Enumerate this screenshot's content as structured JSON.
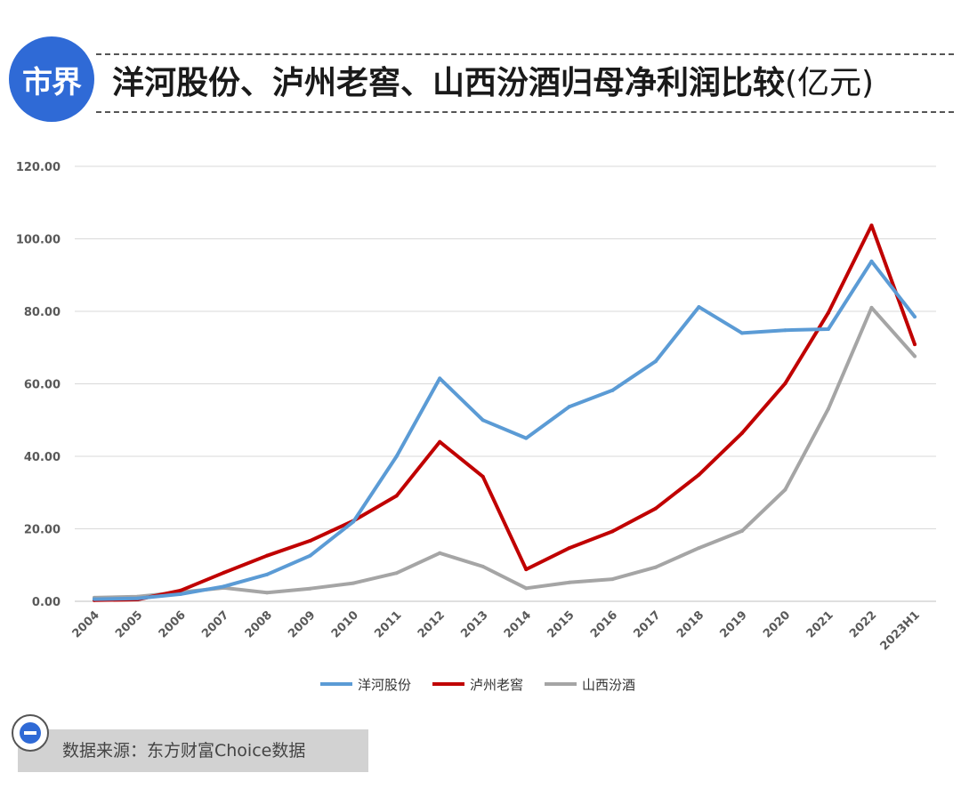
{
  "header": {
    "badge": "市界",
    "title_main": "洋河股份、泸州老窖、山西汾酒归母净利润比较",
    "title_unit": "(亿元)"
  },
  "source": {
    "text": "数据来源：东方财富Choice数据"
  },
  "colors": {
    "yanghe": "#5b9bd5",
    "luzhou": "#c00000",
    "fenjiu": "#a5a5a5",
    "brand": "#2f6ad6"
  },
  "chart_data": {
    "type": "line",
    "title": "洋河股份、泸州老窖、山西汾酒归母净利润比较(亿元)",
    "xlabel": "",
    "ylabel": "",
    "ylim": [
      0,
      120
    ],
    "yticks": [
      "0.00",
      "20.00",
      "40.00",
      "60.00",
      "80.00",
      "100.00",
      "120.00"
    ],
    "categories": [
      "2004",
      "2005",
      "2006",
      "2007",
      "2008",
      "2009",
      "2010",
      "2011",
      "2012",
      "2013",
      "2014",
      "2015",
      "2016",
      "2017",
      "2018",
      "2019",
      "2020",
      "2021",
      "2022",
      "2023H1"
    ],
    "series": [
      {
        "name": "洋河股份",
        "color": "#5b9bd5",
        "values": [
          0.6,
          0.8,
          2.0,
          4.1,
          7.4,
          12.6,
          22.0,
          40.0,
          61.5,
          50.0,
          45.0,
          53.7,
          58.2,
          66.2,
          81.2,
          74.0,
          74.8,
          75.1,
          93.8,
          78.5
        ]
      },
      {
        "name": "泸州老窖",
        "color": "#c00000",
        "values": [
          0.3,
          0.5,
          3.0,
          7.9,
          12.6,
          16.7,
          22.2,
          29.1,
          44.0,
          34.4,
          8.8,
          14.7,
          19.3,
          25.6,
          34.9,
          46.4,
          60.1,
          79.6,
          103.7,
          70.9
        ]
      },
      {
        "name": "山西汾酒",
        "color": "#a5a5a5",
        "values": [
          1.0,
          1.3,
          2.5,
          3.7,
          2.4,
          3.5,
          5.0,
          7.8,
          13.3,
          9.6,
          3.6,
          5.2,
          6.1,
          9.4,
          14.7,
          19.4,
          30.8,
          53.1,
          81.0,
          67.6
        ]
      }
    ],
    "legend_position": "bottom"
  }
}
